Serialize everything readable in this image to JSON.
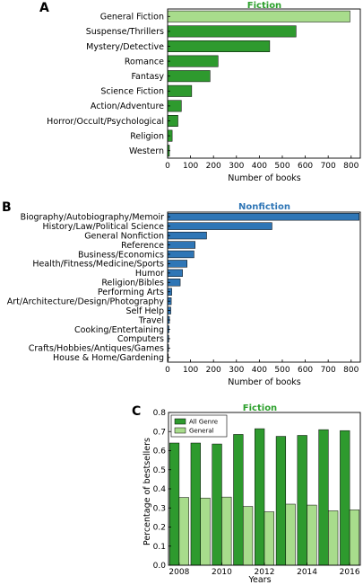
{
  "colors": {
    "fiction_dark": "#2e9a2e",
    "fiction_light": "#a8dc8c",
    "fiction_title": "#2ca02c",
    "nonfiction": "#2f76b6",
    "nonfiction_title": "#2f76b6"
  },
  "chart_data": [
    {
      "panel_label": "A",
      "type": "bar",
      "orientation": "horizontal",
      "title": "Fiction",
      "xlabel": "Number of books",
      "xlim": [
        0,
        840
      ],
      "xticks": [
        "0",
        "100",
        "200",
        "300",
        "400",
        "500",
        "600",
        "700",
        "800"
      ],
      "categories": [
        "General Fiction",
        "Suspense/Thrillers",
        "Mystery/Detective",
        "Romance",
        "Fantasy",
        "Science Fiction",
        "Action/Adventure",
        "Horror/Occult/Psychological",
        "Religion",
        "Western"
      ],
      "values": [
        795,
        560,
        445,
        220,
        185,
        105,
        60,
        45,
        20,
        8
      ],
      "highlight_index": 0
    },
    {
      "panel_label": "B",
      "type": "bar",
      "orientation": "horizontal",
      "title": "Nonfiction",
      "xlabel": "Number of books",
      "xlim": [
        0,
        840
      ],
      "xticks": [
        "0",
        "100",
        "200",
        "300",
        "400",
        "500",
        "600",
        "700",
        "800"
      ],
      "categories": [
        "Biography/Autobiography/Memoir",
        "History/Law/Political Science",
        "General Nonfiction",
        "Reference",
        "Business/Economics",
        "Health/Fitness/Medicine/Sports",
        "Humor",
        "Religion/Bibles",
        "Performing Arts",
        "Art/Architecture/Design/Photography",
        "Self Help",
        "Travel",
        "Cooking/Entertaining",
        "Computers",
        "Crafts/Hobbies/Antiques/Games",
        "House & Home/Gardening"
      ],
      "values": [
        835,
        455,
        170,
        120,
        115,
        85,
        65,
        55,
        18,
        16,
        14,
        8,
        6,
        5,
        4,
        3
      ]
    },
    {
      "panel_label": "C",
      "type": "bar",
      "orientation": "vertical",
      "title": "Fiction",
      "xlabel": "Years",
      "ylabel": "Percentage of bestsellers",
      "ylim": [
        0,
        0.8
      ],
      "yticks": [
        "0.0",
        "0.1",
        "0.2",
        "0.3",
        "0.4",
        "0.5",
        "0.6",
        "0.7",
        "0.8"
      ],
      "categories": [
        "2008",
        "2009",
        "2010",
        "2011",
        "2012",
        "2013",
        "2014",
        "2015",
        "2016"
      ],
      "xtick_labels": [
        "2008",
        "2010",
        "2012",
        "2014",
        "2016"
      ],
      "legend_position": "upper-left",
      "series": [
        {
          "name": "All Genre",
          "values": [
            0.64,
            0.64,
            0.635,
            0.685,
            0.715,
            0.675,
            0.68,
            0.71,
            0.705
          ]
        },
        {
          "name": "General",
          "values": [
            0.355,
            0.352,
            0.357,
            0.308,
            0.28,
            0.32,
            0.315,
            0.285,
            0.29
          ]
        }
      ]
    }
  ]
}
